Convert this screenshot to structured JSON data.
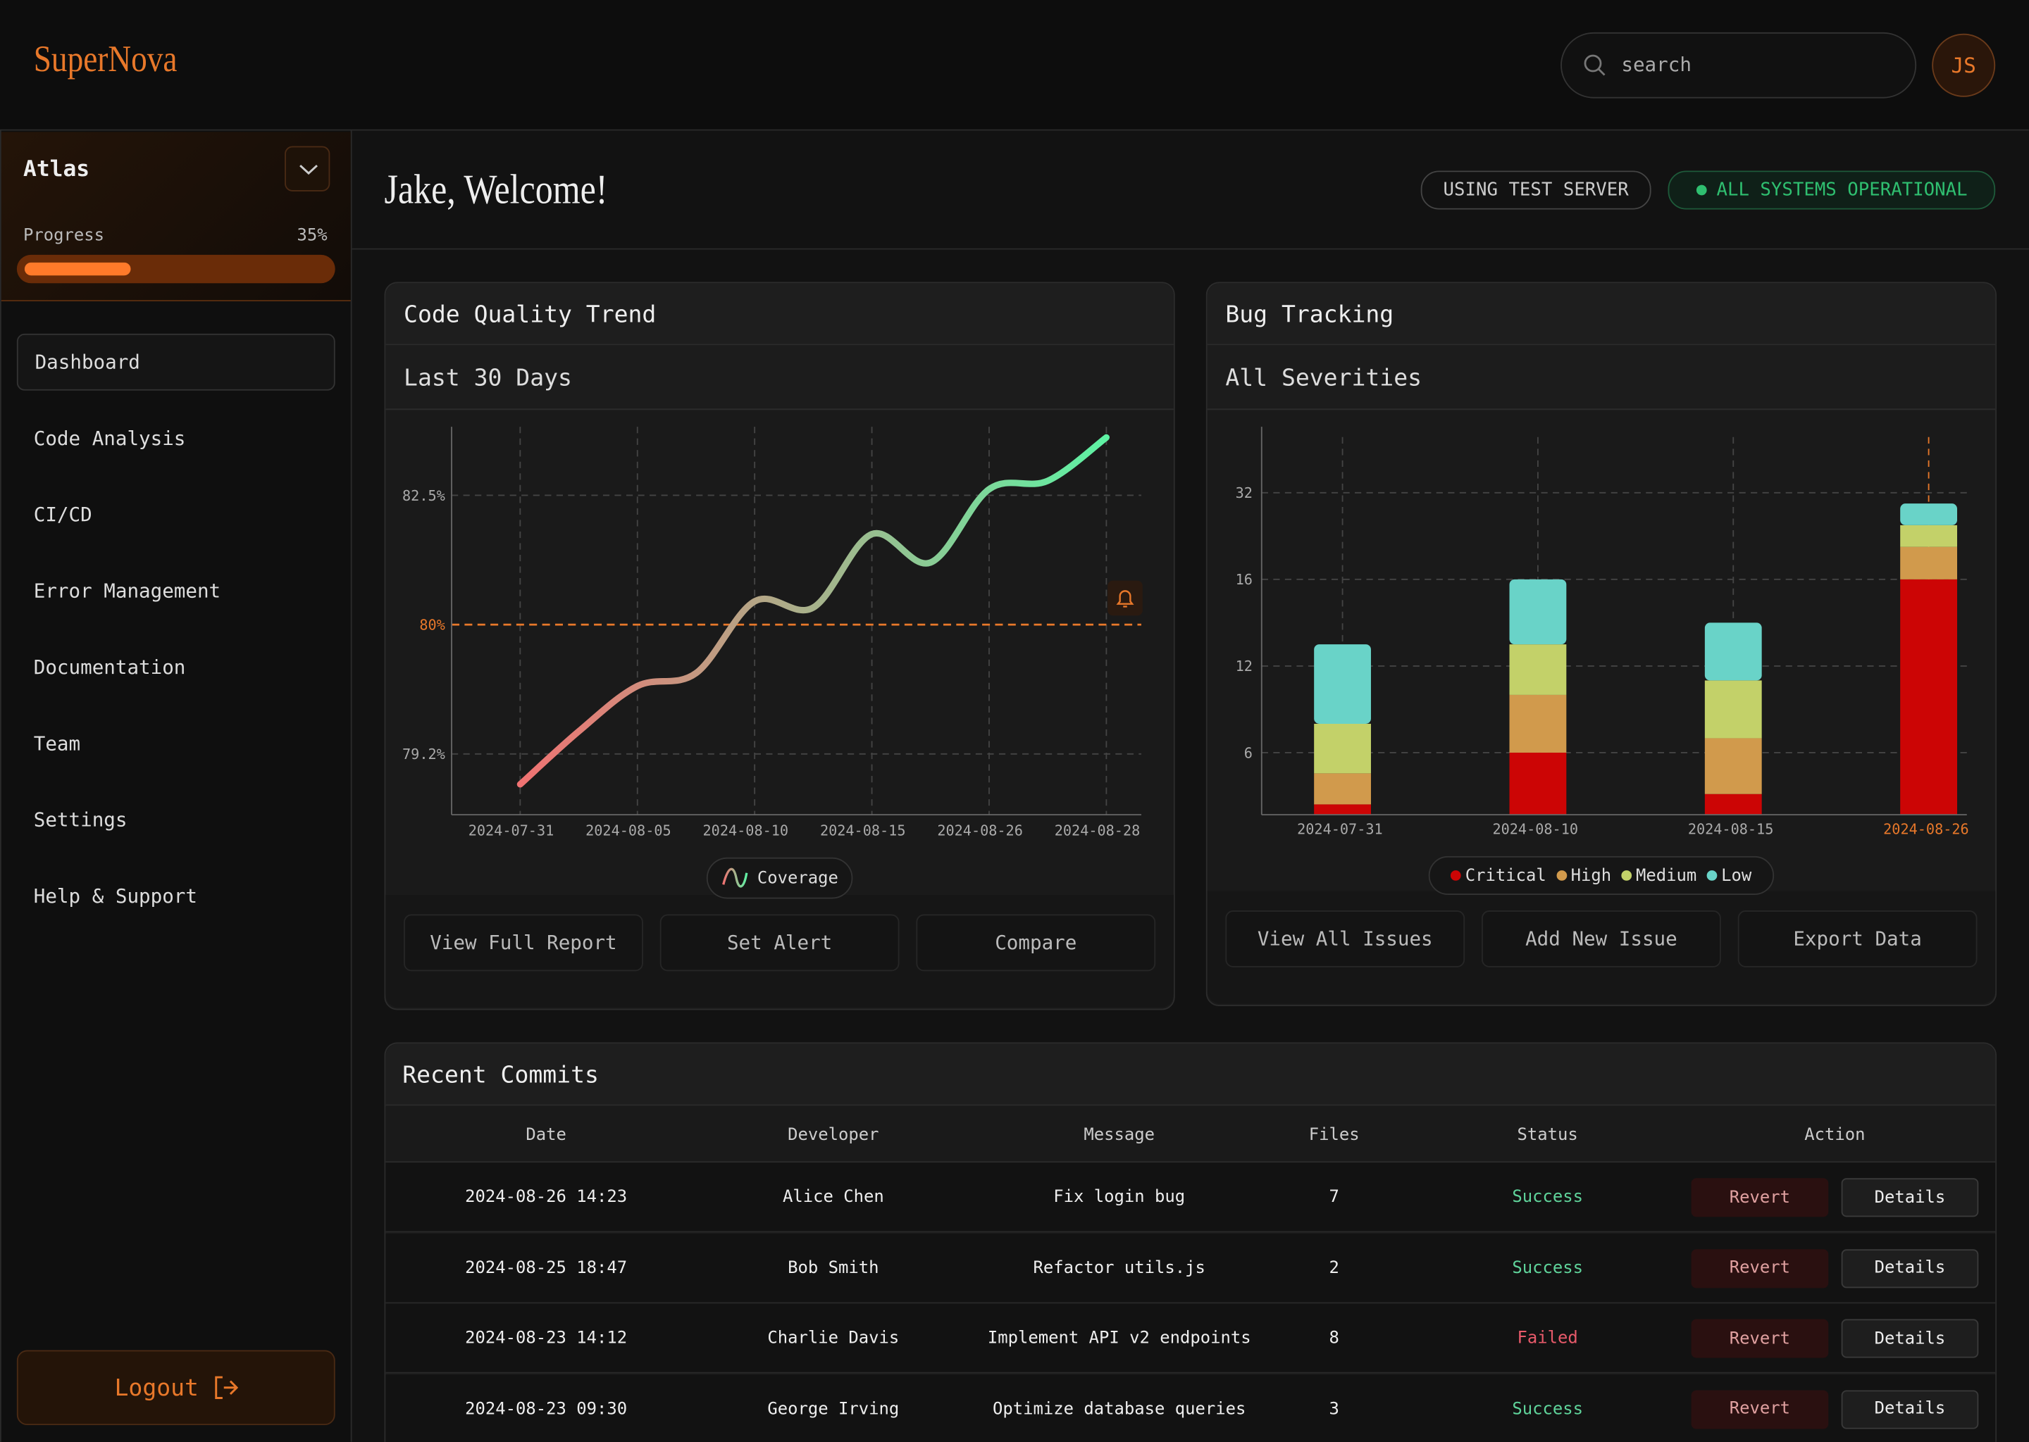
{
  "header": {
    "logo": "SuperNova",
    "search": "search",
    "avatar": "JS"
  },
  "sidebar": {
    "project": "Atlas",
    "progress": {
      "label": "Progress",
      "value": 35,
      "value_label": "35%"
    },
    "nav": [
      "Dashboard",
      "Code Analysis",
      "CI/CD",
      "Error Management",
      "Documentation",
      "Team",
      "Settings",
      "Help & Support"
    ],
    "logout": "Logout"
  },
  "welcome": "Jake, Welcome!",
  "badges": [
    "USING TEST SERVER",
    "ALL SYSTEMS OPERATIONAL"
  ],
  "code_quality": {
    "title": "Code Quality Trend",
    "filter": "Last 30 Days",
    "buttons": [
      "View Full Report",
      "Set Alert",
      "Compare"
    ],
    "chart": {
      "type": "line",
      "categories": [
        "2024-07-31",
        null,
        "2024-08-05",
        null,
        "2024-08-10",
        null,
        "2024-08-15",
        null,
        "2024-08-26",
        null,
        "2024-08-28"
      ],
      "series": [
        {
          "name": "Coverage",
          "color": [
            "#f07272",
            "#5ef2a4"
          ],
          "values": [
            79.05,
            79.34,
            79.62,
            79.7,
            80.45,
            80.33,
            81.75,
            81.2,
            82.58,
            82.69,
            83.26
          ]
        }
      ],
      "ylim": [
        78.9,
        83.4
      ],
      "yticks": [
        {
          "value": 79.2,
          "label": "79.2%"
        },
        {
          "value": 80,
          "label": "80%"
        },
        {
          "value": 82.5,
          "label": "82.5%"
        }
      ],
      "threshold": 80,
      "threshold_color": "#e8782a",
      "grid": true
    }
  },
  "bug_tracking": {
    "title": "Bug Tracking",
    "filter": "All Severities",
    "buttons": [
      "View All Issues",
      "Add New Issue",
      "Export Data"
    ],
    "chart": {
      "type": "stacked-bar",
      "categories": [
        "2024-07-31",
        "2024-08-10",
        "2024-08-15",
        "2024-08-26"
      ],
      "series": [
        {
          "name": "Critical",
          "color": "#cc0505",
          "values": [
            1,
            6,
            2,
            16
          ]
        },
        {
          "name": "High",
          "color": "#d19a4c",
          "values": [
            3,
            4,
            5,
            6
          ]
        },
        {
          "name": "Medium",
          "color": "#c3d169",
          "values": [
            4,
            3,
            4,
            4
          ]
        },
        {
          "name": "Low",
          "color": "#69d3c8",
          "values": [
            5,
            3,
            3,
            4
          ]
        }
      ],
      "ylim": [
        0,
        40
      ],
      "yticks": [
        6,
        12,
        16,
        32
      ],
      "highlight": "2024-08-26",
      "highlight_color": "#e8782a",
      "grid": true
    }
  },
  "commits": {
    "title": "Recent Commits",
    "columns": [
      "Date",
      "Developer",
      "Message",
      "Files",
      "Status",
      "Action"
    ],
    "actions": [
      "Revert",
      "Details"
    ],
    "rows": [
      {
        "cells": [
          "2024-08-26 14:23",
          "Alice Chen",
          "Fix login bug",
          "7",
          "Success"
        ],
        "status_color": "#5fd39a"
      },
      {
        "cells": [
          "2024-08-25 18:47",
          "Bob Smith",
          "Refactor utils.js",
          "2",
          "Success"
        ],
        "status_color": "#5fd39a"
      },
      {
        "cells": [
          "2024-08-23 14:12",
          "Charlie Davis",
          "Implement API v2 endpoints",
          "8",
          "Failed"
        ],
        "status_color": "#e85a6a"
      },
      {
        "cells": [
          "2024-08-23 09:30",
          "George Irving",
          "Optimize database queries",
          "3",
          "Success"
        ],
        "status_color": "#5fd39a"
      }
    ]
  }
}
